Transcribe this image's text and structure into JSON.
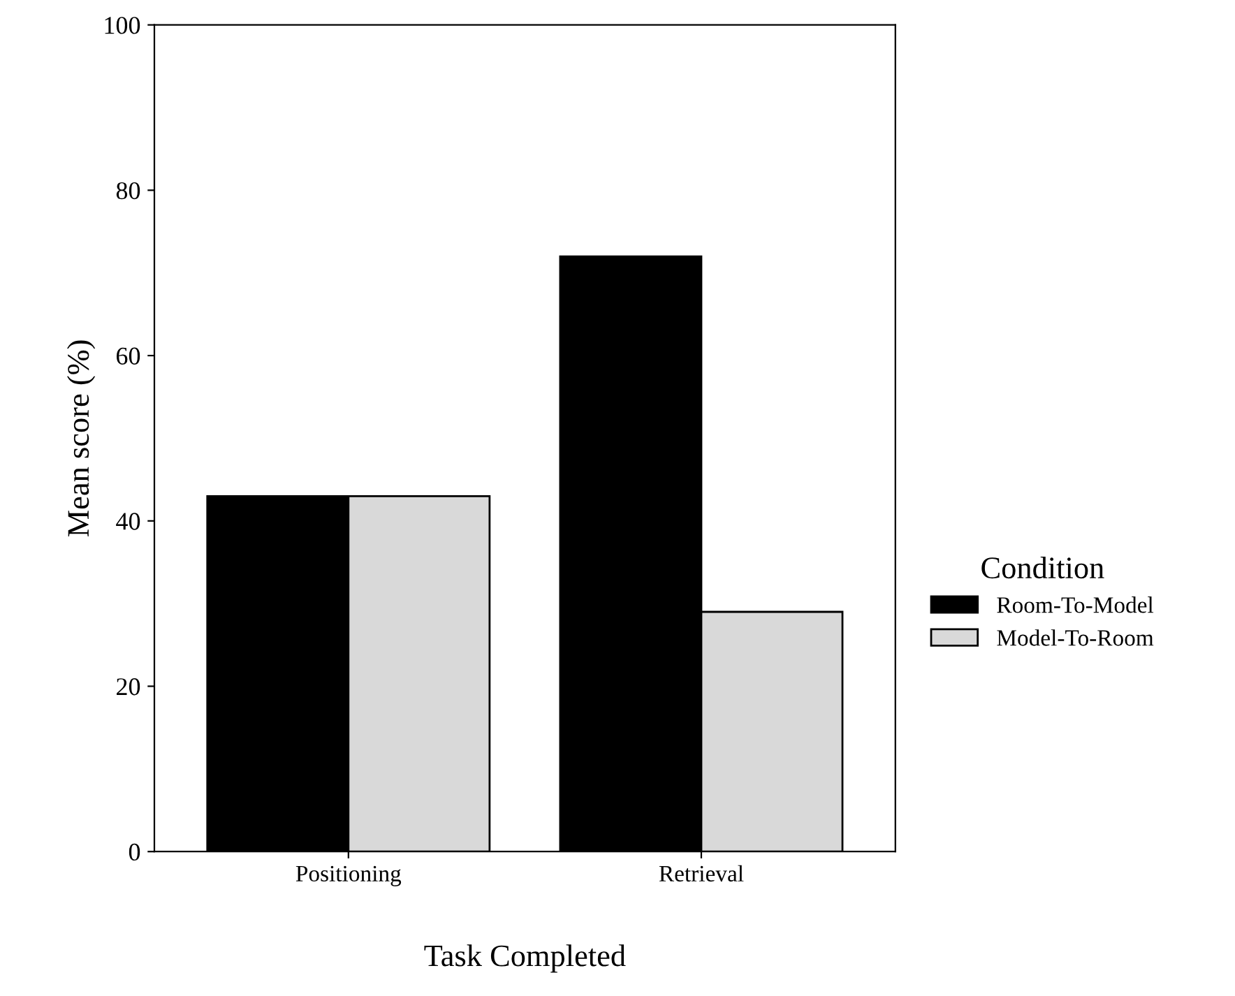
{
  "chart_data": {
    "type": "bar",
    "xlabel": "Task Completed",
    "ylabel": "Mean score (%)",
    "legend_title": "Condition",
    "categories": [
      "Positioning",
      "Retrieval"
    ],
    "series": [
      {
        "name": "Room-To-Model",
        "color": "#000000",
        "values": [
          43,
          72
        ]
      },
      {
        "name": "Model-To-Room",
        "color": "#d9d9d9",
        "values": [
          43,
          29
        ]
      }
    ],
    "ylim": [
      0,
      100
    ],
    "yticks": [
      0,
      20,
      40,
      60,
      80,
      100
    ],
    "grid": false,
    "legend": "right"
  }
}
